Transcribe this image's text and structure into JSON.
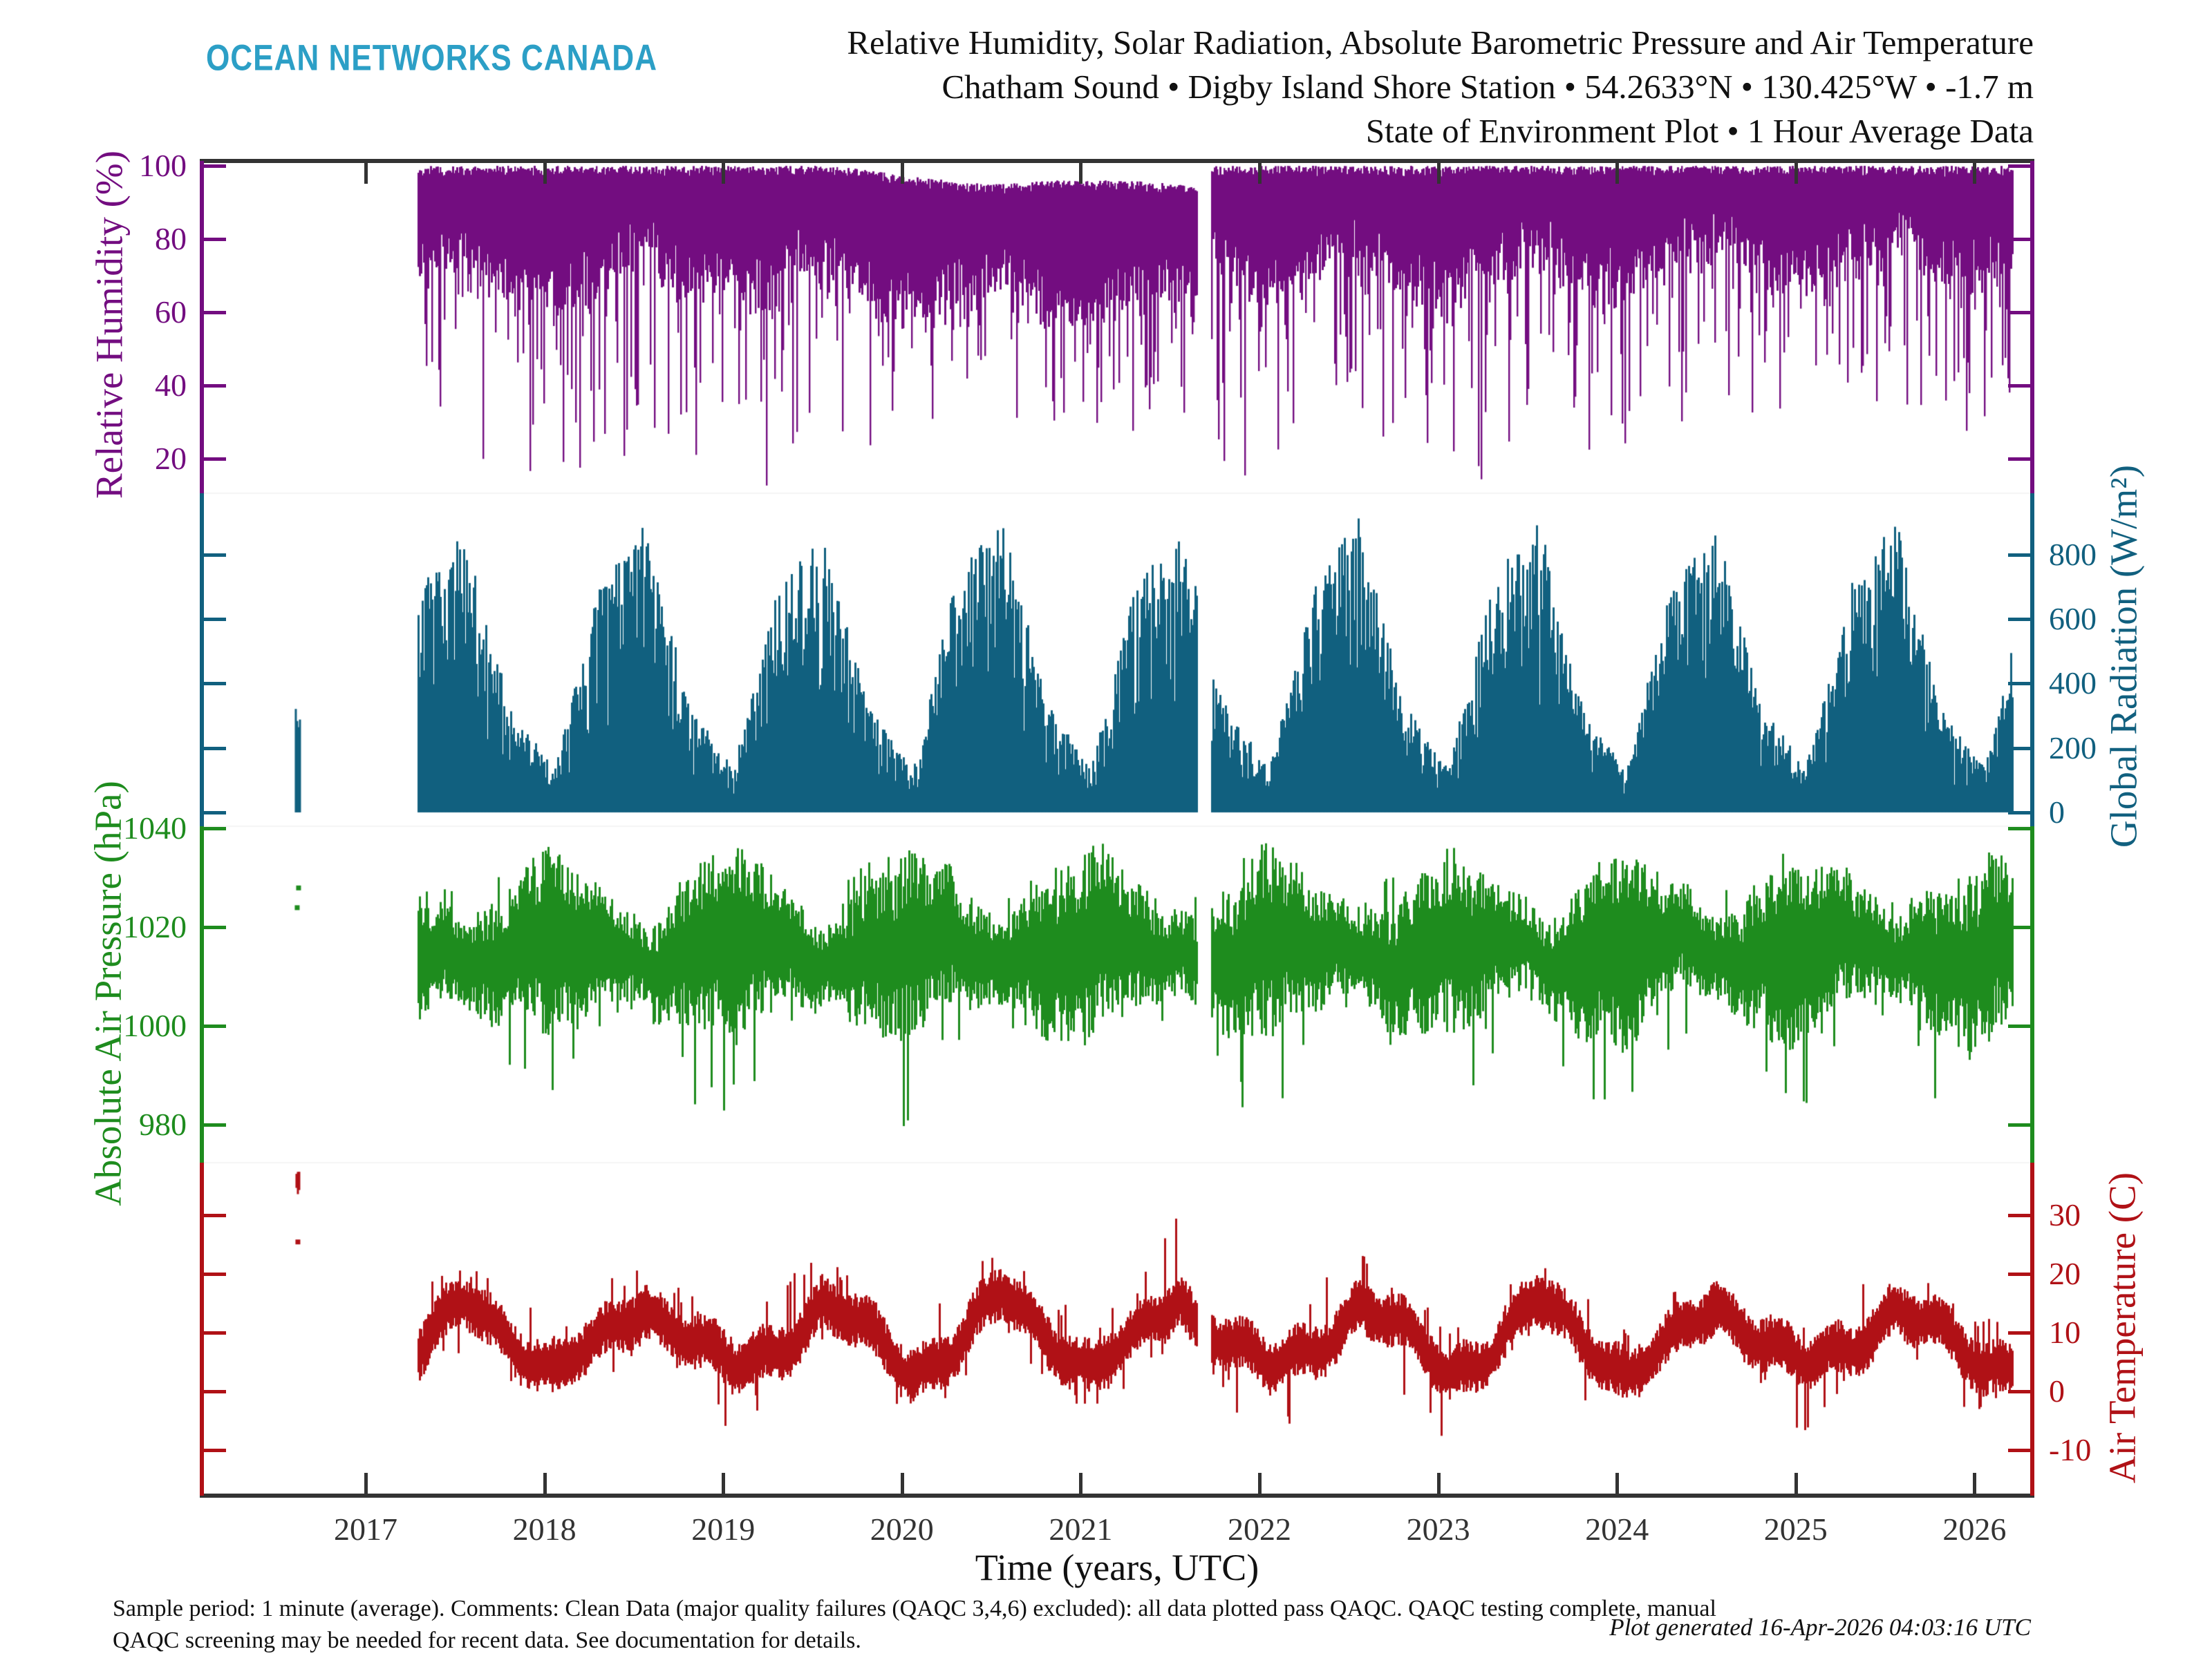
{
  "header": {
    "logo_text": "OCEAN NETWORKS CANADA",
    "logo_color": "#2c9fc6",
    "title_lines": [
      "Relative Humidity, Solar Radiation, Absolute Barometric Pressure and Air Temperature",
      "Chatham Sound • Digby Island Shore Station • 54.2633°N • 130.425°W • -1.7 m",
      "State of Environment Plot • 1 Hour Average Data"
    ]
  },
  "footer": {
    "note_line1": "Sample period: 1 minute (average). Comments: Clean Data (major quality failures (QAQC 3,4,6) excluded): all data plotted pass QAQC. QAQC testing complete, manual",
    "note_line2": "QAQC screening may be needed for recent data. See documentation for details.",
    "generated": "Plot generated 16-Apr-2026 04:03:16 UTC"
  },
  "chart_data": {
    "type": "line",
    "title": "Relative Humidity, Solar Radiation, Absolute Barometric Pressure and Air Temperature",
    "subtitle": "Chatham Sound • Digby Island Shore Station • 54.2633°N • 130.425°W • -1.7 m • State of Environment Plot • 1 Hour Average Data",
    "xlabel": "Time (years, UTC)",
    "x_ticks": [
      2017,
      2018,
      2019,
      2020,
      2021,
      2022,
      2023,
      2024,
      2025,
      2026
    ],
    "x_range_years": [
      2016.08,
      2026.33
    ],
    "data_start_year": 2017.29,
    "data_end_year": 2026.21,
    "data_gap_years": [
      2021.648,
      2021.725
    ],
    "axis_color": "#333333",
    "grid": false,
    "legend_position": "none",
    "envelope_t": [
      2017.3,
      2017.55,
      2017.8,
      2018.05,
      2018.3,
      2018.55,
      2018.8,
      2019.05,
      2019.3,
      2019.55,
      2019.8,
      2020.05,
      2020.3,
      2020.55,
      2020.8,
      2021.05,
      2021.3,
      2021.55,
      2021.64,
      2021.73,
      2021.8,
      2022.05,
      2022.3,
      2022.55,
      2022.8,
      2023.05,
      2023.3,
      2023.55,
      2023.8,
      2024.05,
      2024.3,
      2024.55,
      2024.8,
      2025.05,
      2025.3,
      2025.55,
      2025.8,
      2026.05,
      2026.3
    ],
    "panels": [
      {
        "id": "humidity",
        "label": "Relative Humidity (%)",
        "unit": "%",
        "color": "#730d80",
        "tick_side": "left",
        "ticks": [
          100,
          80,
          60,
          40,
          20
        ],
        "y_range": [
          10.6,
          101.32
        ],
        "envelope": {
          "max": [
            100,
            100,
            100,
            100,
            100,
            100,
            100,
            100,
            100,
            100,
            99,
            97,
            96,
            95,
            96,
            96,
            96,
            95,
            94,
            100,
            100,
            100,
            100,
            100,
            100,
            100,
            100,
            100,
            100,
            100,
            100,
            100,
            100,
            100,
            100,
            100,
            100,
            100,
            100
          ],
          "band_lo": [
            70,
            74,
            64,
            62,
            68,
            74,
            66,
            62,
            66,
            72,
            62,
            58,
            62,
            66,
            58,
            58,
            62,
            64,
            62,
            74,
            68,
            62,
            70,
            74,
            66,
            62,
            70,
            75,
            66,
            64,
            72,
            76,
            70,
            66,
            72,
            76,
            70,
            68,
            72
          ],
          "spike_lo": [
            30,
            25,
            14,
            13,
            14,
            28,
            24,
            12,
            13,
            30,
            26,
            22,
            28,
            24,
            13,
            25,
            28,
            26,
            30,
            35,
            17,
            18,
            25,
            30,
            22,
            20,
            14,
            32,
            25,
            22,
            30,
            35,
            30,
            28,
            35,
            38,
            28,
            30,
            40
          ]
        }
      },
      {
        "id": "radiation",
        "label": "Global Radiation (W/m²)",
        "unit": "W/m2",
        "color": "#11607f",
        "tick_side": "right",
        "ticks": [
          800,
          600,
          400,
          200,
          0
        ],
        "y_range": [
          -43,
          991
        ],
        "envelope": {
          "peak": [
            690,
            865,
            330,
            135,
            700,
            900,
            340,
            130,
            690,
            875,
            330,
            135,
            710,
            930,
            340,
            130,
            700,
            890,
            700,
            420,
            330,
            130,
            700,
            905,
            335,
            130,
            705,
            915,
            330,
            130,
            700,
            895,
            335,
            130,
            700,
            900,
            330,
            135,
            720
          ]
        },
        "snippet_2016": {
          "t": 2016.615,
          "range": [
            0,
            330
          ]
        }
      },
      {
        "id": "pressure",
        "label": "Absolute Air Pressure (hPa)",
        "unit": "hPa",
        "color": "#1e8c1e",
        "tick_side": "left",
        "ticks": [
          1040,
          1020,
          1000,
          980
        ],
        "y_range": [
          972.3,
          1040.42
        ],
        "envelope": {
          "mean": 1015,
          "spread": [
            13,
            8,
            16,
            20,
            13,
            8,
            16,
            20,
            13,
            8,
            16,
            20,
            13,
            8,
            16,
            20,
            13,
            8,
            10,
            12,
            16,
            20,
            13,
            8,
            16,
            20,
            13,
            8,
            16,
            20,
            13,
            8,
            16,
            20,
            13,
            8,
            16,
            20,
            13
          ],
          "ext_lo": [
            995,
            1002,
            984,
            980,
            995,
            1003,
            982,
            979,
            996,
            1002,
            983,
            978,
            995,
            1004,
            982,
            982,
            995,
            1004,
            1000,
            998,
            984,
            979,
            995,
            1003,
            983,
            977,
            994,
            1003,
            982,
            978,
            995,
            1004,
            983,
            980,
            995,
            1003,
            982,
            982,
            996
          ],
          "ext_hi": [
            1030,
            1027,
            1032,
            1036,
            1030,
            1027,
            1033,
            1037,
            1031,
            1027,
            1033,
            1036,
            1030,
            1026,
            1032,
            1036,
            1030,
            1026,
            1028,
            1029,
            1033,
            1037,
            1031,
            1027,
            1033,
            1039,
            1031,
            1026,
            1033,
            1037,
            1030,
            1027,
            1032,
            1038,
            1031,
            1026,
            1033,
            1036,
            1030
          ]
        },
        "snippet_2016": {
          "t": 2016.615,
          "values": [
            1024,
            1028
          ]
        }
      },
      {
        "id": "temperature",
        "label": "Air Temperature (C)",
        "unit": "C",
        "color": "#b01116",
        "tick_side": "right",
        "ticks": [
          30,
          20,
          10,
          0,
          -10
        ],
        "y_range": [
          -17.76,
          38.94
        ],
        "envelope": {
          "mean": [
            7.5,
            14.5,
            9.5,
            3.5,
            7.5,
            15,
            9.5,
            3,
            7.5,
            15,
            9.5,
            3.5,
            8,
            16,
            10,
            4,
            8,
            16.5,
            12,
            11,
            9.5,
            3,
            7.5,
            15,
            9.5,
            3.5,
            7.5,
            15,
            9.5,
            3,
            7.5,
            15,
            9.5,
            3.5,
            7.5,
            15,
            9.5,
            3.5,
            7.5
          ],
          "hi": [
            18,
            22,
            17,
            12,
            18,
            23,
            17,
            12,
            18,
            24,
            17,
            12,
            19,
            25,
            18,
            12,
            19,
            31,
            22,
            20,
            17,
            12,
            18,
            25,
            17,
            12,
            18,
            23,
            17,
            12,
            18,
            24,
            17,
            12,
            18,
            23,
            17,
            12,
            16
          ],
          "lo": [
            0,
            7,
            -1,
            -6,
            0,
            8,
            0,
            -9,
            0,
            8,
            -1,
            -8,
            0,
            9,
            0,
            -6,
            1,
            9,
            4,
            3,
            -1,
            -12,
            0,
            8,
            -1,
            -10,
            0,
            8,
            -1,
            -13,
            0,
            8,
            0,
            -9,
            0,
            8,
            -1,
            -7,
            1
          ]
        },
        "snippet_2016": {
          "t": 2016.615,
          "cluster": [
            33.5,
            38
          ],
          "dot": 25.5
        }
      }
    ]
  }
}
